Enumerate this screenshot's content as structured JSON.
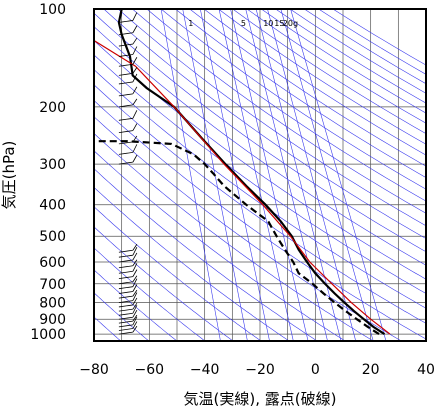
{
  "chart_data": {
    "type": "line",
    "subtype": "emagram (skew-T style thermodynamic diagram)",
    "xlabel": "気温(実線), 露点(破線)",
    "ylabel": "気圧(hPa)",
    "xlim": [
      -80,
      40
    ],
    "ylim_hpa": [
      1050,
      100
    ],
    "y_scale": "log",
    "x_ticks": [
      -80,
      -60,
      -40,
      -20,
      0,
      20,
      40
    ],
    "x_tick_labels": [
      "−80",
      "−60",
      "−40",
      "−20",
      "0",
      "20",
      "40"
    ],
    "y_ticks": [
      100,
      200,
      300,
      400,
      500,
      600,
      700,
      800,
      900,
      1000
    ],
    "y_tick_labels": [
      "100",
      "200",
      "300",
      "400",
      "500",
      "600",
      "700",
      "800",
      "900",
      "1000"
    ],
    "grid": true,
    "mixing_ratio_labels": [
      "1",
      "5",
      "10",
      "15",
      "20g"
    ],
    "mixing_ratio_label_temps": [
      -45,
      -26,
      -17,
      -13,
      -9
    ],
    "colors": {
      "temperature": "#000000",
      "dewpoint": "#000000",
      "parcel_path": "#cc0000",
      "dry_adiabats": "#3a3aee",
      "mixing_ratio_lines": "#3a3aee",
      "grid": "#555555",
      "wind_barbs": "#000000"
    },
    "series": [
      {
        "name": "気温",
        "style": "solid",
        "points": [
          {
            "p": 1000,
            "t": 25
          },
          {
            "p": 950,
            "t": 21
          },
          {
            "p": 900,
            "t": 17.5
          },
          {
            "p": 850,
            "t": 14
          },
          {
            "p": 800,
            "t": 10.5
          },
          {
            "p": 750,
            "t": 7
          },
          {
            "p": 700,
            "t": 3.5
          },
          {
            "p": 650,
            "t": 0
          },
          {
            "p": 600,
            "t": -3
          },
          {
            "p": 550,
            "t": -6
          },
          {
            "p": 500,
            "t": -8.5
          },
          {
            "p": 450,
            "t": -12.5
          },
          {
            "p": 400,
            "t": -18
          },
          {
            "p": 350,
            "t": -25
          },
          {
            "p": 300,
            "t": -32.5
          },
          {
            "p": 250,
            "t": -41
          },
          {
            "p": 200,
            "t": -51
          },
          {
            "p": 175,
            "t": -61
          },
          {
            "p": 160,
            "t": -66
          },
          {
            "p": 140,
            "t": -67
          },
          {
            "p": 120,
            "t": -70
          },
          {
            "p": 110,
            "t": -71
          },
          {
            "p": 100,
            "t": -70
          }
        ]
      },
      {
        "name": "露点",
        "style": "dashed",
        "points": [
          {
            "p": 1000,
            "t": 23
          },
          {
            "p": 950,
            "t": 19
          },
          {
            "p": 900,
            "t": 15
          },
          {
            "p": 850,
            "t": 11
          },
          {
            "p": 800,
            "t": 7
          },
          {
            "p": 750,
            "t": 3
          },
          {
            "p": 700,
            "t": -1
          },
          {
            "p": 650,
            "t": -6
          },
          {
            "p": 600,
            "t": -8
          },
          {
            "p": 550,
            "t": -11
          },
          {
            "p": 500,
            "t": -14
          },
          {
            "p": 450,
            "t": -17
          },
          {
            "p": 400,
            "t": -25
          },
          {
            "p": 350,
            "t": -33
          },
          {
            "p": 320,
            "t": -37
          },
          {
            "p": 300,
            "t": -40
          },
          {
            "p": 280,
            "t": -44
          },
          {
            "p": 260,
            "t": -52
          },
          {
            "p": 255,
            "t": -68
          },
          {
            "p": 255,
            "t": -80
          }
        ]
      },
      {
        "name": "parcel",
        "style": "solid-thin",
        "points": [
          {
            "p": 1000,
            "t": 27
          },
          {
            "p": 900,
            "t": 20
          },
          {
            "p": 800,
            "t": 13
          },
          {
            "p": 700,
            "t": 6
          },
          {
            "p": 600,
            "t": -2
          },
          {
            "p": 500,
            "t": -9
          },
          {
            "p": 400,
            "t": -19
          },
          {
            "p": 300,
            "t": -33
          },
          {
            "p": 200,
            "t": -51
          },
          {
            "p": 150,
            "t": -65
          },
          {
            "p": 125,
            "t": -80
          }
        ]
      }
    ],
    "wind_barb_pressures": [
      1000,
      975,
      950,
      925,
      900,
      875,
      850,
      825,
      800,
      775,
      750,
      725,
      700,
      675,
      650,
      625,
      600,
      580,
      560,
      300,
      280,
      260,
      240,
      220,
      200,
      185,
      170,
      160,
      150,
      140,
      130,
      120,
      110,
      100
    ]
  }
}
